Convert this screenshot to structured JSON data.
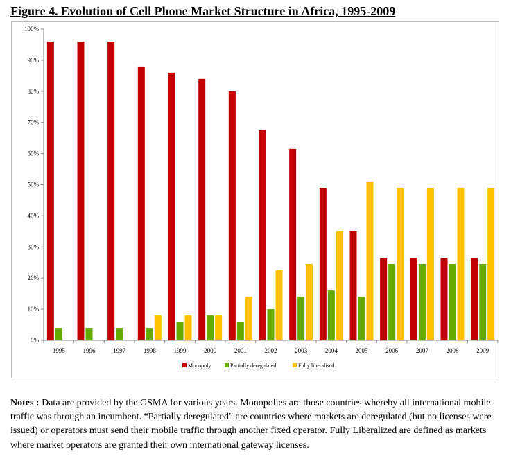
{
  "figure_title": "Figure 4.  Evolution of Cell Phone Market Structure in Africa, 1995-2009",
  "notes": {
    "label": "Notes :",
    "text": "Data are provided by the GSMA for various years.  Monopolies are those countries whereby all international mobile traffic was through an incumbent.  “Partially deregulated” are countries where markets are deregulated (but no licenses were issued) or operators must send their mobile traffic through another fixed operator.  Fully Liberalized are defined as markets where market operators are granted their own international gateway licenses."
  },
  "chart_data": {
    "type": "bar",
    "title": "Figure 4.  Evolution of Cell Phone Market Structure in Africa, 1995-2009",
    "categories": [
      "1995",
      "1996",
      "1997",
      "1998",
      "1999",
      "2000",
      "2001",
      "2002",
      "2003",
      "2004",
      "2005",
      "2006",
      "2007",
      "2008",
      "2009"
    ],
    "series": [
      {
        "name": "Monopoly",
        "color": "#c00000",
        "values": [
          96,
          96,
          96,
          88,
          86,
          84,
          80,
          67.5,
          61.5,
          49,
          35,
          26.5,
          26.5,
          26.5,
          26.5
        ]
      },
      {
        "name": "Partially deregulated",
        "color": "#66aa00",
        "values": [
          4,
          4,
          4,
          4,
          6,
          8,
          6,
          10,
          14,
          16,
          14,
          24.5,
          24.5,
          24.5,
          24.5
        ]
      },
      {
        "name": "Fully liberalised",
        "color": "#ffc000",
        "values": [
          0,
          0,
          0,
          8,
          8,
          8,
          14,
          22.5,
          24.5,
          35,
          51,
          49,
          49,
          49,
          49
        ]
      }
    ],
    "ylim": [
      0,
      100
    ],
    "yticks": [
      "0%",
      "10%",
      "20%",
      "30%",
      "40%",
      "50%",
      "60%",
      "70%",
      "80%",
      "90%",
      "100%"
    ],
    "grid": false,
    "legend_position": "bottom"
  }
}
